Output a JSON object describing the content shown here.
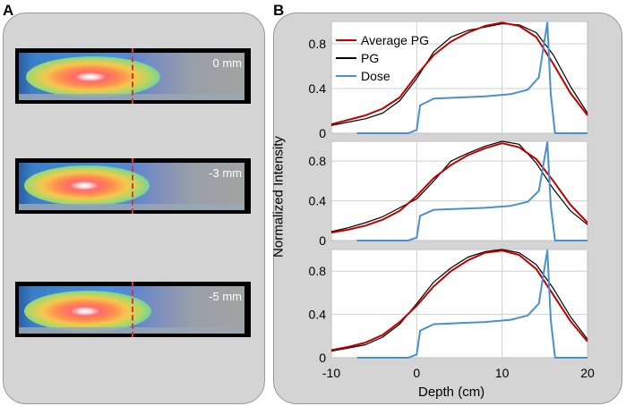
{
  "figure": {
    "panel_a_label": "A",
    "panel_b_label": "B"
  },
  "panel_a": {
    "images": [
      {
        "shift_label": "0 mm"
      },
      {
        "shift_label": "-3 mm"
      },
      {
        "shift_label": "-5 mm"
      }
    ]
  },
  "colors": {
    "average_pg": "#c00000",
    "pg": "#000000",
    "dose": "#4a90d0",
    "grid": "#d0d0d0"
  },
  "chart_data": {
    "type": "line",
    "xlabel": "Depth (cm)",
    "ylabel": "Normalized Intensity",
    "xlim": [
      -10,
      20
    ],
    "ylim": [
      0,
      1
    ],
    "x_ticks": [
      "-10",
      "0",
      "10",
      "20"
    ],
    "y_ticks": [
      "0",
      "0.4",
      "0.8"
    ],
    "legend": {
      "position": "top-left",
      "entries": [
        "Average PG",
        "PG",
        "Dose"
      ]
    },
    "subplots": [
      {
        "shift": "0 mm",
        "series": [
          {
            "name": "Average PG",
            "color": "#c00000",
            "x": [
              -10,
              -8,
              -6,
              -4,
              -2,
              0,
              2,
              4,
              6,
              8,
              10,
              12,
              14,
              16,
              18,
              20
            ],
            "y": [
              0.08,
              0.12,
              0.16,
              0.22,
              0.32,
              0.52,
              0.7,
              0.82,
              0.9,
              0.96,
              0.99,
              0.96,
              0.86,
              0.62,
              0.36,
              0.16
            ]
          },
          {
            "name": "PG",
            "color": "#000000",
            "x": [
              -10,
              -8,
              -6,
              -4,
              -2,
              0,
              2,
              4,
              6,
              8,
              10,
              12,
              14,
              16,
              18,
              20
            ],
            "y": [
              0.07,
              0.1,
              0.13,
              0.18,
              0.29,
              0.49,
              0.73,
              0.86,
              0.92,
              0.95,
              0.98,
              0.97,
              0.9,
              0.7,
              0.42,
              0.18
            ]
          },
          {
            "name": "Dose",
            "color": "#4a90d0",
            "x": [
              -7,
              -1,
              0,
              0.4,
              1.2,
              2,
              5,
              8,
              11,
              13,
              14.3,
              14.9,
              15.3,
              15.7,
              16.2,
              20
            ],
            "y": [
              0.0,
              0.0,
              0.03,
              0.25,
              0.28,
              0.31,
              0.32,
              0.33,
              0.35,
              0.39,
              0.5,
              0.8,
              0.99,
              0.35,
              0.0,
              0.0
            ]
          }
        ]
      },
      {
        "shift": "-3 mm",
        "series": [
          {
            "name": "Average PG",
            "color": "#c00000",
            "x": [
              -10,
              -8,
              -6,
              -4,
              -2,
              0,
              2,
              4,
              6,
              8,
              10,
              12,
              14,
              16,
              18,
              20
            ],
            "y": [
              0.08,
              0.11,
              0.15,
              0.21,
              0.3,
              0.45,
              0.63,
              0.76,
              0.86,
              0.93,
              0.98,
              0.94,
              0.82,
              0.6,
              0.36,
              0.18
            ]
          },
          {
            "name": "PG",
            "color": "#000000",
            "x": [
              -10,
              -8,
              -6,
              -4,
              -2,
              0,
              2,
              4,
              6,
              8,
              10,
              12,
              14,
              16,
              18,
              20
            ],
            "y": [
              0.09,
              0.13,
              0.18,
              0.24,
              0.33,
              0.42,
              0.6,
              0.8,
              0.88,
              0.95,
              1.0,
              0.97,
              0.78,
              0.52,
              0.3,
              0.16
            ]
          },
          {
            "name": "Dose",
            "color": "#4a90d0",
            "x": [
              -7,
              -1,
              0,
              0.4,
              1.2,
              2,
              5,
              8,
              11,
              13,
              14.3,
              14.9,
              15.3,
              15.7,
              16.2,
              20
            ],
            "y": [
              0.0,
              0.0,
              0.03,
              0.25,
              0.28,
              0.31,
              0.32,
              0.33,
              0.35,
              0.39,
              0.5,
              0.8,
              0.99,
              0.35,
              0.0,
              0.0
            ]
          }
        ]
      },
      {
        "shift": "-5 mm",
        "series": [
          {
            "name": "Average PG",
            "color": "#c00000",
            "x": [
              -10,
              -8,
              -6,
              -4,
              -2,
              0,
              2,
              4,
              6,
              8,
              10,
              12,
              14,
              16,
              18,
              20
            ],
            "y": [
              0.07,
              0.1,
              0.14,
              0.21,
              0.33,
              0.48,
              0.66,
              0.8,
              0.9,
              0.97,
              0.99,
              0.95,
              0.82,
              0.58,
              0.34,
              0.15
            ]
          },
          {
            "name": "PG",
            "color": "#000000",
            "x": [
              -10,
              -8,
              -6,
              -4,
              -2,
              0,
              2,
              4,
              6,
              8,
              10,
              12,
              14,
              16,
              18,
              20
            ],
            "y": [
              0.06,
              0.09,
              0.12,
              0.19,
              0.31,
              0.5,
              0.7,
              0.83,
              0.93,
              0.98,
              1.0,
              0.97,
              0.86,
              0.64,
              0.38,
              0.17
            ]
          },
          {
            "name": "Dose",
            "color": "#4a90d0",
            "x": [
              -7,
              -1,
              0,
              0.4,
              1.2,
              2,
              5,
              8,
              11,
              13,
              14.3,
              14.9,
              15.3,
              15.7,
              16.2,
              20
            ],
            "y": [
              0.0,
              0.0,
              0.03,
              0.25,
              0.28,
              0.31,
              0.32,
              0.33,
              0.35,
              0.39,
              0.5,
              0.8,
              0.99,
              0.35,
              0.0,
              0.0
            ]
          }
        ]
      }
    ]
  }
}
